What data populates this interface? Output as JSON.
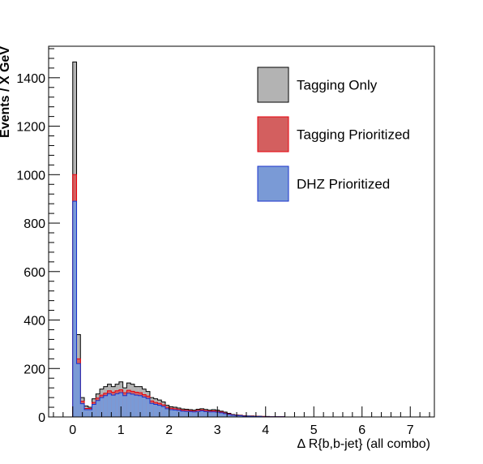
{
  "chart_data": {
    "type": "bar",
    "histogram": true,
    "stacked": false,
    "xlabel": "Δ R{b,b-jet}  (all combo)",
    "ylabel": "Events / X GeV",
    "xlim": [
      -0.5,
      7.5
    ],
    "ylim": [
      0,
      1530
    ],
    "xticks": [
      0,
      1,
      2,
      3,
      4,
      5,
      6,
      7
    ],
    "yticks": [
      0,
      200,
      400,
      600,
      800,
      1000,
      1200,
      1400
    ],
    "bin_width": 0.08,
    "x": [
      0.0,
      0.08,
      0.16,
      0.24,
      0.32,
      0.4,
      0.48,
      0.56,
      0.64,
      0.72,
      0.8,
      0.88,
      0.96,
      1.04,
      1.12,
      1.2,
      1.28,
      1.36,
      1.44,
      1.52,
      1.6,
      1.68,
      1.76,
      1.84,
      1.92,
      2.0,
      2.08,
      2.16,
      2.24,
      2.32,
      2.4,
      2.48,
      2.56,
      2.64,
      2.72,
      2.8,
      2.88,
      2.96,
      3.04,
      3.12,
      3.2,
      3.28,
      3.36,
      3.44,
      3.52,
      3.6,
      3.68,
      3.76,
      3.84,
      3.92,
      4.0,
      4.08,
      4.16,
      4.24,
      4.32
    ],
    "legend_position": "top-right",
    "series": [
      {
        "name": "Tagging Only",
        "fill": "#b3b3b3",
        "stroke": "#000000",
        "values": [
          1465,
          340,
          80,
          45,
          40,
          75,
          95,
          115,
          125,
          135,
          125,
          135,
          145,
          120,
          140,
          135,
          125,
          125,
          115,
          105,
          80,
          75,
          70,
          62,
          48,
          42,
          40,
          37,
          33,
          32,
          30,
          28,
          32,
          34,
          31,
          28,
          30,
          28,
          24,
          20,
          15,
          10,
          8,
          7,
          5,
          4,
          4,
          3,
          3,
          2,
          2,
          1,
          1,
          1,
          1
        ]
      },
      {
        "name": "Tagging Prioritized",
        "fill": "#d35f5f",
        "stroke": "#e8000b",
        "values": [
          1000,
          240,
          65,
          35,
          35,
          60,
          78,
          90,
          98,
          108,
          102,
          108,
          112,
          100,
          110,
          106,
          102,
          100,
          92,
          86,
          66,
          60,
          56,
          50,
          40,
          36,
          34,
          31,
          28,
          27,
          26,
          24,
          27,
          29,
          26,
          24,
          25,
          23,
          20,
          16,
          12,
          8,
          7,
          6,
          4,
          3,
          3,
          3,
          2,
          2,
          1,
          1,
          1,
          1,
          1
        ]
      },
      {
        "name": "DHZ Prioritized",
        "fill": "#7a9ad6",
        "stroke": "#1a33cc",
        "values": [
          890,
          220,
          55,
          30,
          30,
          52,
          68,
          80,
          88,
          96,
          90,
          96,
          100,
          88,
          98,
          94,
          90,
          88,
          82,
          76,
          56,
          52,
          48,
          43,
          34,
          30,
          29,
          27,
          24,
          23,
          22,
          21,
          23,
          25,
          22,
          21,
          21,
          20,
          17,
          14,
          10,
          7,
          6,
          5,
          3,
          3,
          2,
          2,
          2,
          1,
          1,
          1,
          1,
          1,
          1
        ]
      }
    ]
  }
}
